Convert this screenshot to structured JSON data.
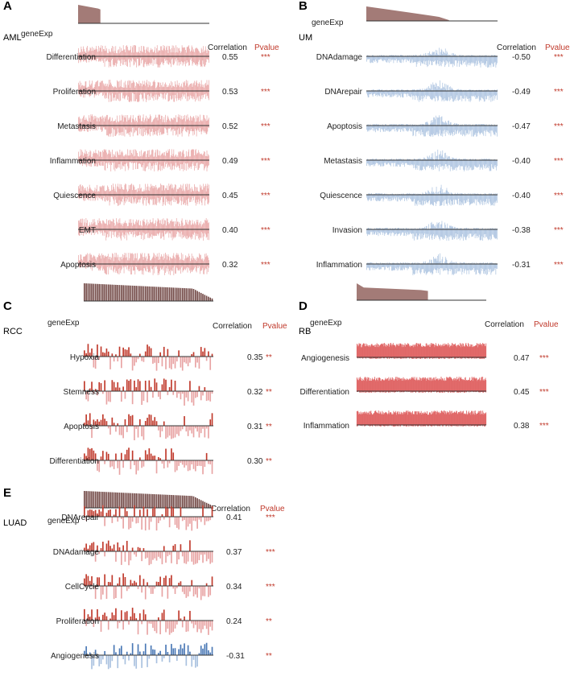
{
  "colors": {
    "pos_dark": "#c0392b",
    "pos_light": "#e8a3a3",
    "neg_dark": "#4a78b5",
    "neg_light": "#a9c1df",
    "dense_pos": "#e06666",
    "gene_fill": "#a37b77",
    "gene_bar": "#6f4542",
    "pvalue": "#c0392b",
    "baseline": "#333333"
  },
  "chart_data": [
    {
      "id": "A",
      "type": "bar",
      "panel_label": "A",
      "dataset": "AML",
      "style": "dense",
      "gene_label": "geneExp",
      "header_correlation": "Correlation",
      "header_pvalue": "Pvalue",
      "rows": [
        {
          "name": "Differentiation",
          "correlation": "0.55",
          "pvalue": "***"
        },
        {
          "name": "Proliferation",
          "correlation": "0.53",
          "pvalue": "***"
        },
        {
          "name": "Metastasis",
          "correlation": "0.52",
          "pvalue": "***"
        },
        {
          "name": "Inflammation",
          "correlation": "0.49",
          "pvalue": "***"
        },
        {
          "name": "Quiescence",
          "correlation": "0.45",
          "pvalue": "***"
        },
        {
          "name": "EMT",
          "correlation": "0.40",
          "pvalue": "***"
        },
        {
          "name": "Apoptosis",
          "correlation": "0.32",
          "pvalue": "***"
        }
      ]
    },
    {
      "id": "B",
      "type": "bar",
      "panel_label": "B",
      "dataset": "UM",
      "style": "dense",
      "gene_label": "geneExp",
      "header_correlation": "Correlation",
      "header_pvalue": "Pvalue",
      "rows": [
        {
          "name": "DNAdamage",
          "correlation": "-0.50",
          "pvalue": "***"
        },
        {
          "name": "DNArepair",
          "correlation": "-0.49",
          "pvalue": "***"
        },
        {
          "name": "Apoptosis",
          "correlation": "-0.47",
          "pvalue": "***"
        },
        {
          "name": "Metastasis",
          "correlation": "-0.40",
          "pvalue": "***"
        },
        {
          "name": "Quiescence",
          "correlation": "-0.40",
          "pvalue": "***"
        },
        {
          "name": "Invasion",
          "correlation": "-0.38",
          "pvalue": "***"
        },
        {
          "name": "Inflammation",
          "correlation": "-0.31",
          "pvalue": "***"
        }
      ]
    },
    {
      "id": "C",
      "type": "bar",
      "panel_label": "C",
      "dataset": "RCC",
      "style": "sparse",
      "gene_label": "geneExp",
      "header_correlation": "Correlation",
      "header_pvalue": "Pvalue",
      "rows": [
        {
          "name": "Hypoxia",
          "correlation": "0.35",
          "pvalue": "**"
        },
        {
          "name": "Stemness",
          "correlation": "0.32",
          "pvalue": "**"
        },
        {
          "name": "Apoptosis",
          "correlation": "0.31",
          "pvalue": "**"
        },
        {
          "name": "Differentiation",
          "correlation": "0.30",
          "pvalue": "**"
        }
      ]
    },
    {
      "id": "D",
      "type": "bar",
      "panel_label": "D",
      "dataset": "RB",
      "style": "solid",
      "gene_label": "geneExp",
      "header_correlation": "Correlation",
      "header_pvalue": "Pvalue",
      "rows": [
        {
          "name": "Angiogenesis",
          "correlation": "0.47",
          "pvalue": "***"
        },
        {
          "name": "Differentiation",
          "correlation": "0.45",
          "pvalue": "***"
        },
        {
          "name": "Inflammation",
          "correlation": "0.38",
          "pvalue": "***"
        }
      ]
    },
    {
      "id": "E",
      "type": "bar",
      "panel_label": "E",
      "dataset": "LUAD",
      "style": "sparse",
      "gene_label": "geneExp",
      "header_correlation": "Correlation",
      "header_pvalue": "Pvalue",
      "rows": [
        {
          "name": "DNArepair",
          "correlation": "0.41",
          "pvalue": "***"
        },
        {
          "name": "DNAdamage",
          "correlation": "0.37",
          "pvalue": "***"
        },
        {
          "name": "CellCycle",
          "correlation": "0.34",
          "pvalue": "***"
        },
        {
          "name": "Proliferation",
          "correlation": "0.24",
          "pvalue": "**"
        },
        {
          "name": "Angiogenesis",
          "correlation": "-0.31",
          "pvalue": "**"
        }
      ]
    }
  ]
}
